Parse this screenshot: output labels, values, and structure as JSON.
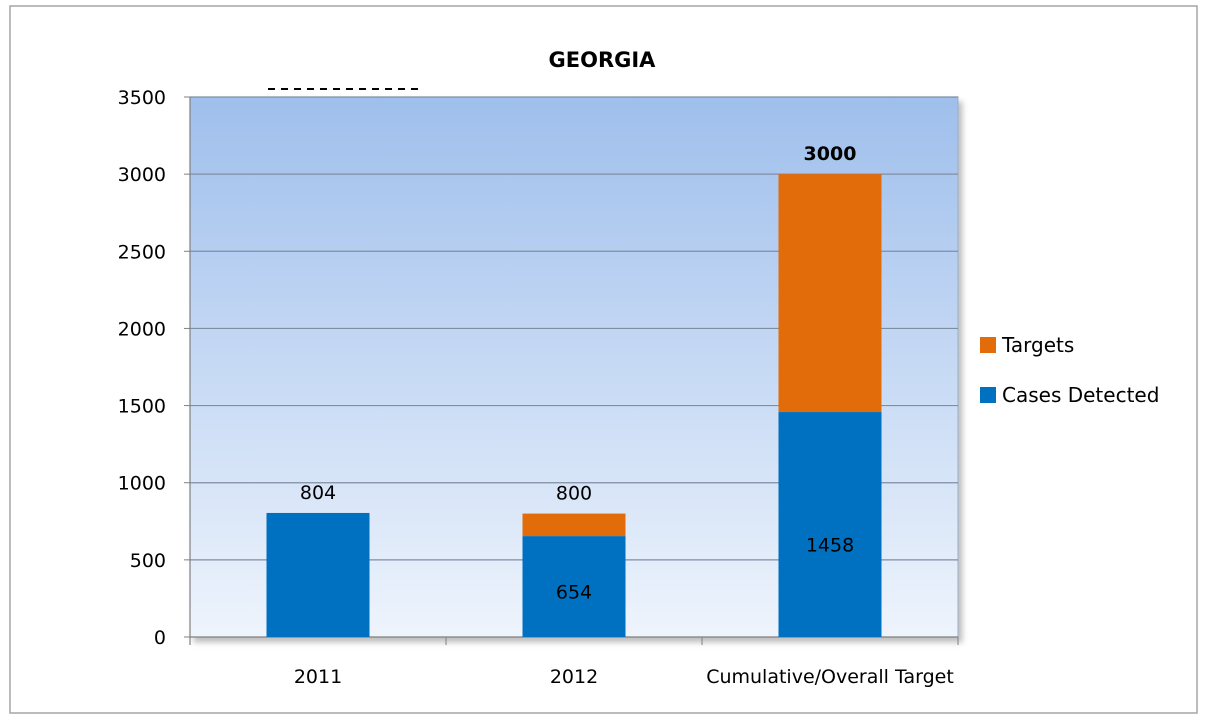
{
  "chart_data": {
    "type": "bar",
    "stacked": true,
    "title": "GEORGIA",
    "xlabel": "",
    "ylabel": "",
    "categories": [
      "2011",
      "2012",
      "Cumulative/Overall Target"
    ],
    "ylim": [
      0,
      3500
    ],
    "yticks": [
      "0",
      "500",
      "1000",
      "1500",
      "2000",
      "2500",
      "3000",
      "3500"
    ],
    "grid": true,
    "legend_position": "right",
    "series": [
      {
        "name": "Cases Detected",
        "values": [
          804,
          654,
          1458
        ],
        "color": "#0070C0"
      },
      {
        "name": "Targets",
        "values": [
          0,
          146,
          1542
        ],
        "color": "#E36C0A"
      }
    ],
    "data_labels": [
      {
        "category": 0,
        "value": 804,
        "text": "804",
        "position": "above",
        "bold": false
      },
      {
        "category": 1,
        "value": 800,
        "text": "800",
        "position": "above",
        "bold": false
      },
      {
        "category": 1,
        "value": 654,
        "text": "654",
        "position": "inside-lower",
        "bold": false
      },
      {
        "category": 2,
        "value": 3000,
        "text": "3000",
        "position": "above",
        "bold": true
      },
      {
        "category": 2,
        "value": 1458,
        "text": "1458",
        "position": "inside-lower",
        "bold": false
      }
    ],
    "legend_order": [
      1,
      0
    ]
  }
}
